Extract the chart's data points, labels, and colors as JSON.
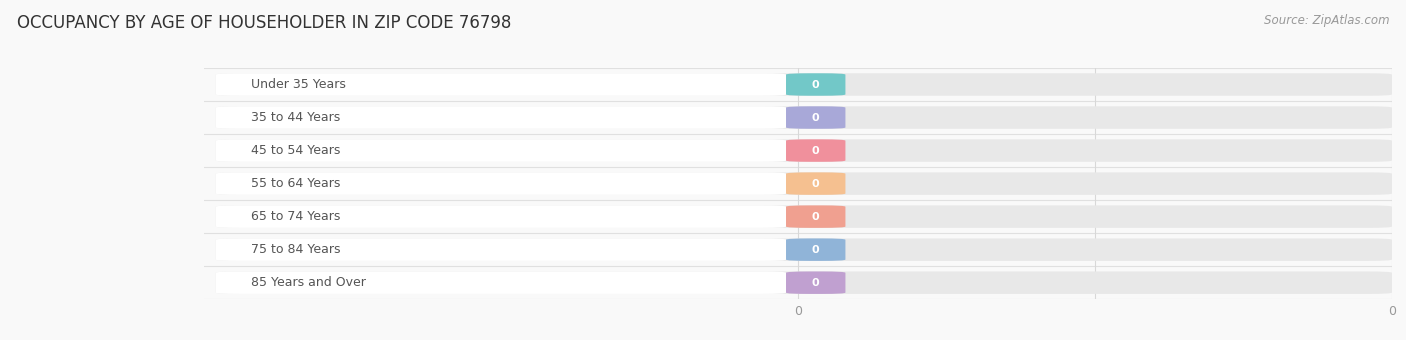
{
  "title": "OCCUPANCY BY AGE OF HOUSEHOLDER IN ZIP CODE 76798",
  "source": "Source: ZipAtlas.com",
  "categories": [
    "Under 35 Years",
    "35 to 44 Years",
    "45 to 54 Years",
    "55 to 64 Years",
    "65 to 74 Years",
    "75 to 84 Years",
    "85 Years and Over"
  ],
  "values": [
    0,
    0,
    0,
    0,
    0,
    0,
    0
  ],
  "bar_colors": [
    "#72C8C8",
    "#A8A8D8",
    "#F0909C",
    "#F5C090",
    "#F0A090",
    "#90B4D8",
    "#C0A0D0"
  ],
  "background_color": "#f9f9f9",
  "plot_bg_color": "#f9f9f9",
  "title_fontsize": 12,
  "tick_fontsize": 9,
  "source_fontsize": 8.5,
  "bar_height": 0.68,
  "track_color": "#e8e8e8",
  "white_pill_color": "#ffffff",
  "label_text_color": "#555555",
  "value_text_color": "#ffffff",
  "grid_color": "#d8d8d8",
  "separator_color": "#e0e0e0"
}
